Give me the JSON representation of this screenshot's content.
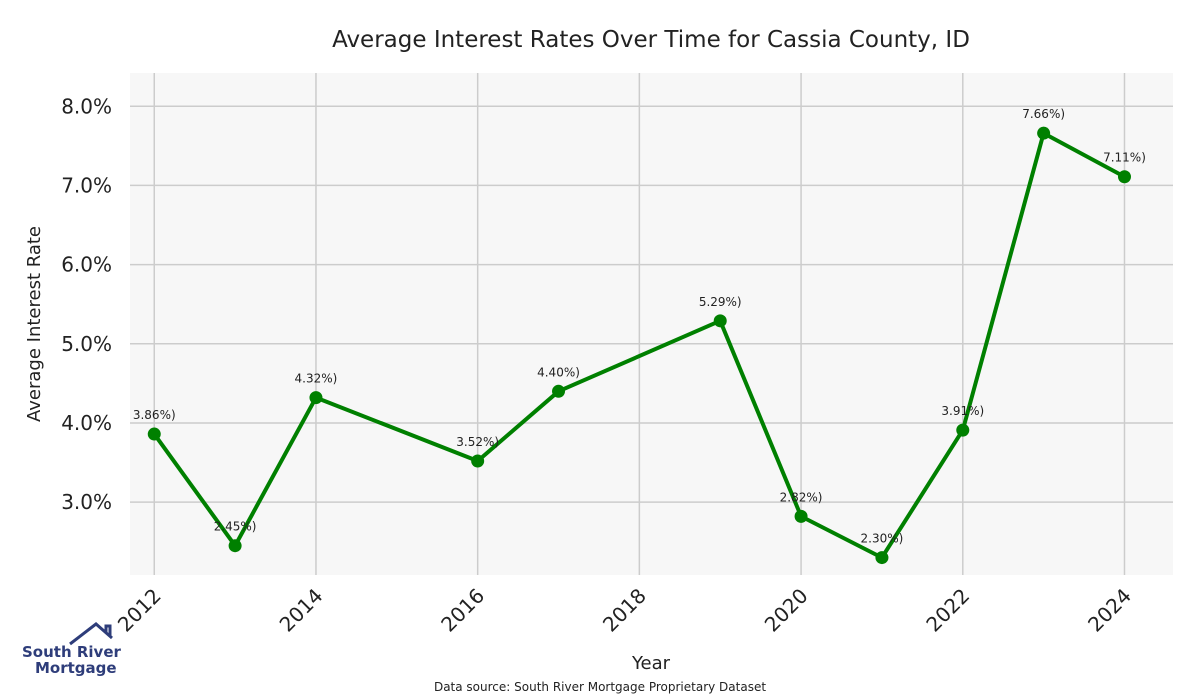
{
  "chart_data": {
    "type": "line",
    "title": "Average Interest Rates Over Time for Cassia County, ID",
    "xlabel": "Year",
    "ylabel": "Average Interest Rate",
    "x": [
      2012,
      2013,
      2014,
      2016,
      2017,
      2019,
      2020,
      2021,
      2022,
      2023,
      2024
    ],
    "values": [
      3.86,
      2.45,
      4.32,
      3.52,
      4.4,
      5.29,
      2.82,
      2.3,
      3.91,
      7.66,
      7.11
    ],
    "data_labels": [
      "3.86%)",
      "2.45%)",
      "4.32%)",
      "3.52%)",
      "4.40%)",
      "5.29%)",
      "2.82%)",
      "2.30%)",
      "3.91%)",
      "7.66%)",
      "7.11%)"
    ],
    "x_ticks": [
      "2012",
      "2014",
      "2016",
      "2018",
      "2020",
      "2022",
      "2024"
    ],
    "y_ticks": [
      "3.0%",
      "4.0%",
      "5.0%",
      "6.0%",
      "7.0%",
      "8.0%"
    ],
    "y_tick_values": [
      3,
      4,
      5,
      6,
      7,
      8
    ],
    "xlim": [
      2011.7,
      2024.6
    ],
    "ylim": [
      2.08,
      8.42
    ],
    "grid": true,
    "line_color": "#008000",
    "background": "#f7f7f7",
    "grid_color": "#cccccc"
  },
  "footer": {
    "source": "Data source: South River Mortgage Proprietary Dataset"
  },
  "logo": {
    "line1": "South River",
    "line2": "Mortgage",
    "icon": "house-roof-icon",
    "color": "#2e3d7a"
  }
}
